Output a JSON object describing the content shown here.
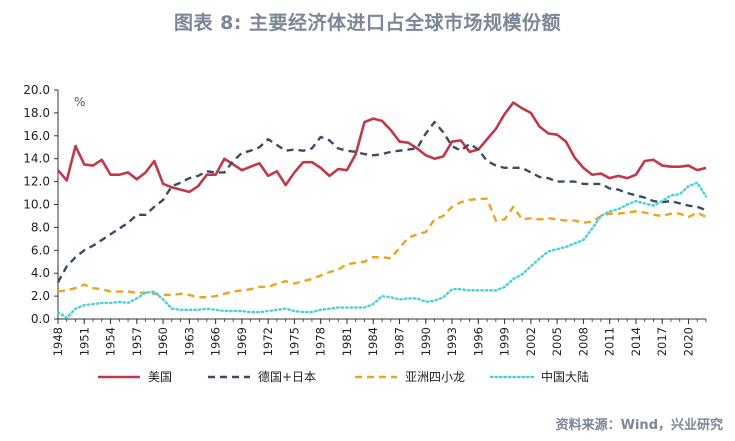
{
  "title": "图表 8:    主要经济体进口占全球市场规模份额",
  "source": "资料来源：Wind，兴业研究",
  "colors": {
    "美国": "#c0394b",
    "德国+日本": "#3c4a66",
    "亚洲四小龙": "#f0a21e",
    "中国大陆": "#49d1d9"
  },
  "chart_data": {
    "type": "line",
    "unit": "%",
    "x": [
      1948,
      1949,
      1950,
      1951,
      1952,
      1953,
      1954,
      1955,
      1956,
      1957,
      1958,
      1959,
      1960,
      1961,
      1962,
      1963,
      1964,
      1965,
      1966,
      1967,
      1968,
      1969,
      1970,
      1971,
      1972,
      1973,
      1974,
      1975,
      1976,
      1977,
      1978,
      1979,
      1980,
      1981,
      1982,
      1983,
      1984,
      1985,
      1986,
      1987,
      1988,
      1989,
      1990,
      1991,
      1992,
      1993,
      1994,
      1995,
      1996,
      1997,
      1998,
      1999,
      2000,
      2001,
      2002,
      2003,
      2004,
      2005,
      2006,
      2007,
      2008,
      2009,
      2010,
      2011,
      2012,
      2013,
      2014,
      2015,
      2016,
      2017,
      2018,
      2019,
      2020,
      2021,
      2022
    ],
    "x_ticks": [
      1948,
      1951,
      1954,
      1957,
      1960,
      1963,
      1966,
      1969,
      1972,
      1975,
      1978,
      1981,
      1984,
      1987,
      1990,
      1993,
      1996,
      1999,
      2002,
      2005,
      2008,
      2011,
      2014,
      2017,
      2020
    ],
    "ylim": [
      0,
      20
    ],
    "y_ticks": [
      "0.0",
      "2.0",
      "4.0",
      "6.0",
      "8.0",
      "10.0",
      "12.0",
      "14.0",
      "16.0",
      "18.0",
      "20.0"
    ],
    "series": [
      {
        "name": "美国",
        "style": "solid",
        "values": [
          13.0,
          12.1,
          15.1,
          13.5,
          13.4,
          13.9,
          12.6,
          12.6,
          12.8,
          12.2,
          12.8,
          13.8,
          11.8,
          11.5,
          11.3,
          11.1,
          11.6,
          12.6,
          12.6,
          14.0,
          13.5,
          13.0,
          13.3,
          13.6,
          12.5,
          12.9,
          11.7,
          12.8,
          13.7,
          13.7,
          13.2,
          12.5,
          13.1,
          13.0,
          14.4,
          17.2,
          17.5,
          17.3,
          16.5,
          15.5,
          15.4,
          14.9,
          14.3,
          14.0,
          14.2,
          15.5,
          15.6,
          14.6,
          14.8,
          15.7,
          16.6,
          17.9,
          18.9,
          18.4,
          18.0,
          16.8,
          16.2,
          16.1,
          15.5,
          14.1,
          13.2,
          12.6,
          12.7,
          12.3,
          12.5,
          12.3,
          12.6,
          13.8,
          13.9,
          13.4,
          13.3,
          13.3,
          13.4,
          13.0,
          13.2
        ]
      },
      {
        "name": "德国+日本",
        "style": "dashed",
        "values": [
          3.2,
          4.6,
          5.4,
          6.0,
          6.4,
          6.9,
          7.4,
          7.9,
          8.4,
          9.1,
          9.1,
          9.8,
          10.4,
          11.6,
          11.9,
          12.3,
          12.5,
          12.9,
          12.8,
          12.8,
          13.8,
          14.5,
          14.7,
          15.0,
          15.7,
          15.2,
          14.7,
          14.8,
          14.7,
          14.9,
          15.9,
          15.6,
          14.9,
          14.7,
          14.6,
          14.4,
          14.3,
          14.4,
          14.6,
          14.7,
          14.8,
          14.9,
          16.2,
          17.2,
          16.3,
          15.1,
          14.7,
          15.3,
          14.8,
          13.8,
          13.4,
          13.2,
          13.2,
          13.2,
          12.8,
          12.4,
          12.3,
          12.0,
          12.0,
          12.0,
          11.8,
          11.8,
          11.8,
          11.4,
          11.3,
          11.0,
          10.8,
          10.6,
          10.3,
          10.2,
          10.3,
          10.1,
          9.9,
          9.8,
          9.5
        ]
      },
      {
        "name": "亚洲四小龙",
        "style": "dashed",
        "values": [
          2.4,
          2.5,
          2.7,
          3.0,
          2.7,
          2.6,
          2.4,
          2.4,
          2.4,
          2.3,
          2.3,
          2.2,
          2.1,
          2.1,
          2.2,
          2.1,
          1.9,
          1.9,
          2.0,
          2.2,
          2.4,
          2.5,
          2.6,
          2.8,
          2.8,
          3.1,
          3.3,
          3.1,
          3.3,
          3.5,
          3.8,
          4.1,
          4.3,
          4.8,
          4.9,
          5.0,
          5.4,
          5.4,
          5.3,
          6.2,
          7.1,
          7.4,
          7.6,
          8.7,
          9.0,
          9.8,
          10.2,
          10.4,
          10.5,
          10.5,
          8.6,
          8.7,
          9.8,
          8.7,
          8.8,
          8.7,
          8.8,
          8.7,
          8.6,
          8.6,
          8.4,
          8.5,
          9.0,
          9.2,
          9.2,
          9.3,
          9.4,
          9.3,
          9.1,
          9.0,
          9.2,
          9.2,
          8.9,
          9.3,
          8.9
        ]
      },
      {
        "name": "中国大陆",
        "style": "dotted",
        "values": [
          0.6,
          0.1,
          0.9,
          1.2,
          1.3,
          1.4,
          1.4,
          1.5,
          1.4,
          1.8,
          2.3,
          2.4,
          1.7,
          0.9,
          0.8,
          0.8,
          0.8,
          0.9,
          0.8,
          0.7,
          0.7,
          0.7,
          0.6,
          0.6,
          0.7,
          0.8,
          0.9,
          0.7,
          0.6,
          0.6,
          0.8,
          0.9,
          1.0,
          1.0,
          1.0,
          1.0,
          1.3,
          2.0,
          1.9,
          1.7,
          1.8,
          1.8,
          1.5,
          1.6,
          1.9,
          2.6,
          2.6,
          2.5,
          2.5,
          2.5,
          2.5,
          2.8,
          3.5,
          3.9,
          4.6,
          5.3,
          5.9,
          6.1,
          6.3,
          6.6,
          6.9,
          7.9,
          9.0,
          9.4,
          9.6,
          10.0,
          10.3,
          10.1,
          9.9,
          10.3,
          10.8,
          10.9,
          11.6,
          11.9,
          10.7
        ]
      }
    ]
  }
}
